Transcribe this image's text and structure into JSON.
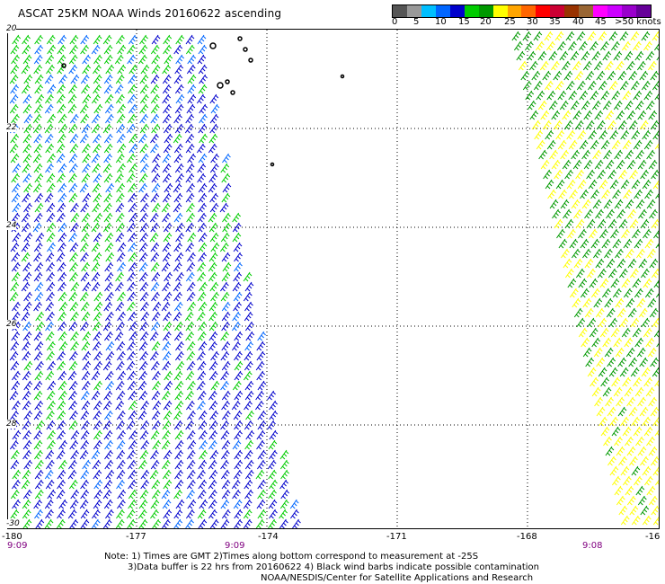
{
  "title": "ASCAT 25KM NOAA Winds 20160622 ascending",
  "scale": {
    "colors": [
      "#555555",
      "#999999",
      "#00bfff",
      "#0066ff",
      "#0000cc",
      "#00cc00",
      "#009900",
      "#ffff00",
      "#ffa500",
      "#ff6600",
      "#ff0000",
      "#cc0033",
      "#993300",
      "#996633",
      "#ff00ff",
      "#cc00ff",
      "#9900cc",
      "#660099"
    ],
    "labels": [
      "0",
      "5",
      "10",
      "15",
      "20",
      "25",
      "30",
      "35",
      "40",
      "45",
      ">50 knots"
    ]
  },
  "map": {
    "lon_labels": [
      "-180",
      "-177",
      "-174",
      "-171",
      "-168",
      "-16"
    ],
    "lat_labels": [
      "20",
      "22",
      "24",
      "26",
      "28",
      "-30"
    ],
    "time_labels": [
      "9:09",
      "9:09",
      "9:08"
    ]
  },
  "notes": {
    "line1": "Note: 1) Times are GMT 2)Times along bottom correspond to measurement at -25S",
    "line2": "3)Data buffer is 22 hrs from 20160622 4) Black wind barbs indicate possible contamination",
    "line3": "NOAA/NESDIS/Center for Satellite Applications and Research"
  }
}
